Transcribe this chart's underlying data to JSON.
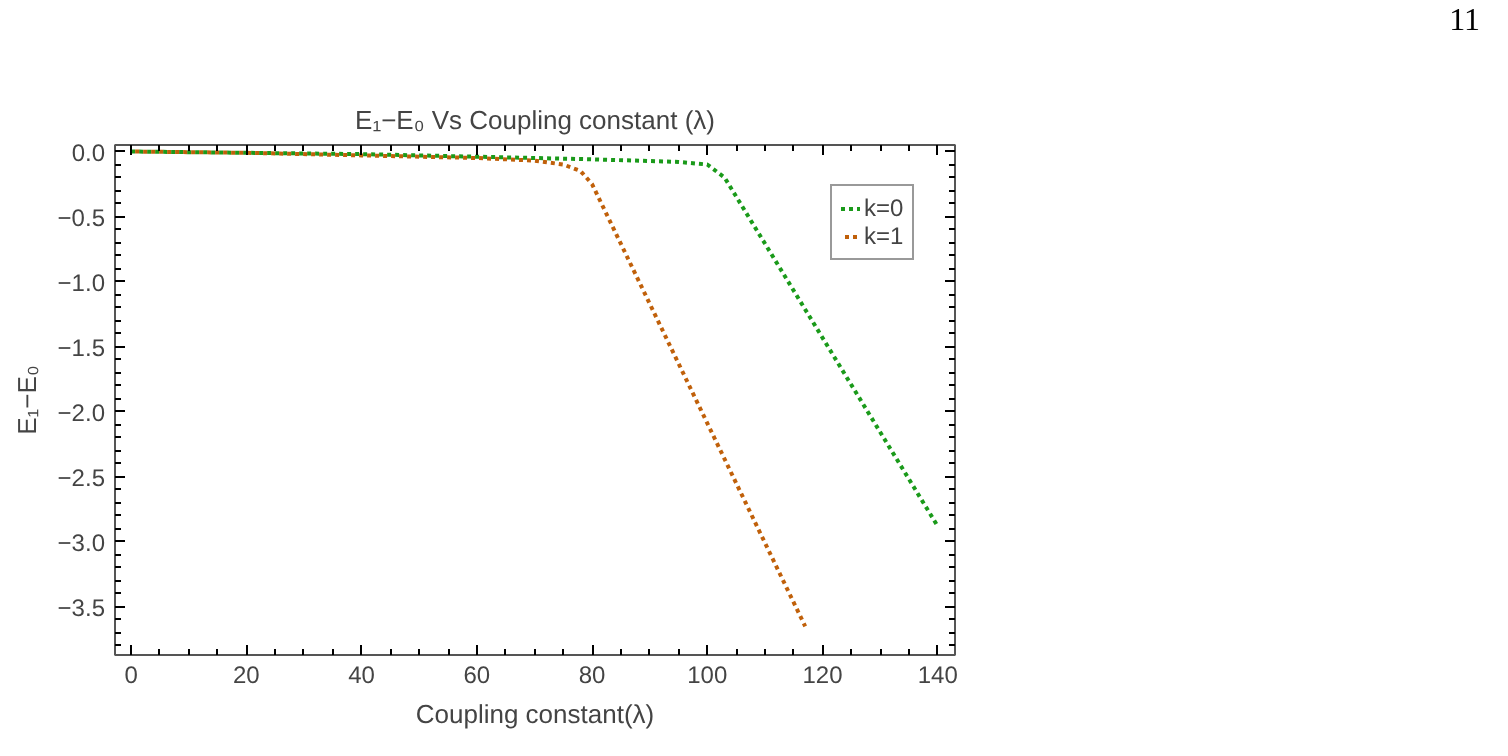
{
  "chart_data": {
    "type": "line",
    "title": "E₁−E₀ Vs Coupling constant (λ)",
    "xlabel": "Coupling constant(λ)",
    "ylabel": "E₁−E₀",
    "annotations": [
      "11"
    ],
    "xlim": [
      -2.8,
      143
    ],
    "ylim": [
      -3.87,
      0.05
    ],
    "xticks": [
      0,
      20,
      40,
      60,
      80,
      100,
      120,
      140
    ],
    "yticks": [
      {
        "value": 0,
        "label": "0.0"
      },
      -0.5,
      {
        "value": -1,
        "label": "−1.0"
      },
      {
        "value": -1.5,
        "label": "−1.5"
      },
      {
        "value": -2,
        "label": "−2.0"
      },
      {
        "value": -2.5,
        "label": "−2.5"
      },
      {
        "value": -3,
        "label": "−3.0"
      },
      {
        "value": -3.5,
        "label": "−3.5"
      }
    ],
    "grid": false,
    "legend": "top right",
    "marker": "none",
    "line_style": "dashed",
    "series": [
      {
        "name": "k=0",
        "color": "#1a9a1a",
        "x": [
          0,
          20,
          40,
          60,
          80,
          95,
          100,
          103,
          140
        ],
        "values": [
          0,
          -0.01,
          -0.02,
          -0.04,
          -0.06,
          -0.08,
          -0.1,
          -0.2,
          -2.88
        ]
      },
      {
        "name": "k=1",
        "color": "#c0600a",
        "x": [
          0,
          20,
          40,
          60,
          70,
          75,
          78,
          80,
          117
        ],
        "values": [
          0,
          -0.01,
          -0.03,
          -0.05,
          -0.07,
          -0.1,
          -0.15,
          -0.25,
          -3.65
        ]
      }
    ]
  }
}
